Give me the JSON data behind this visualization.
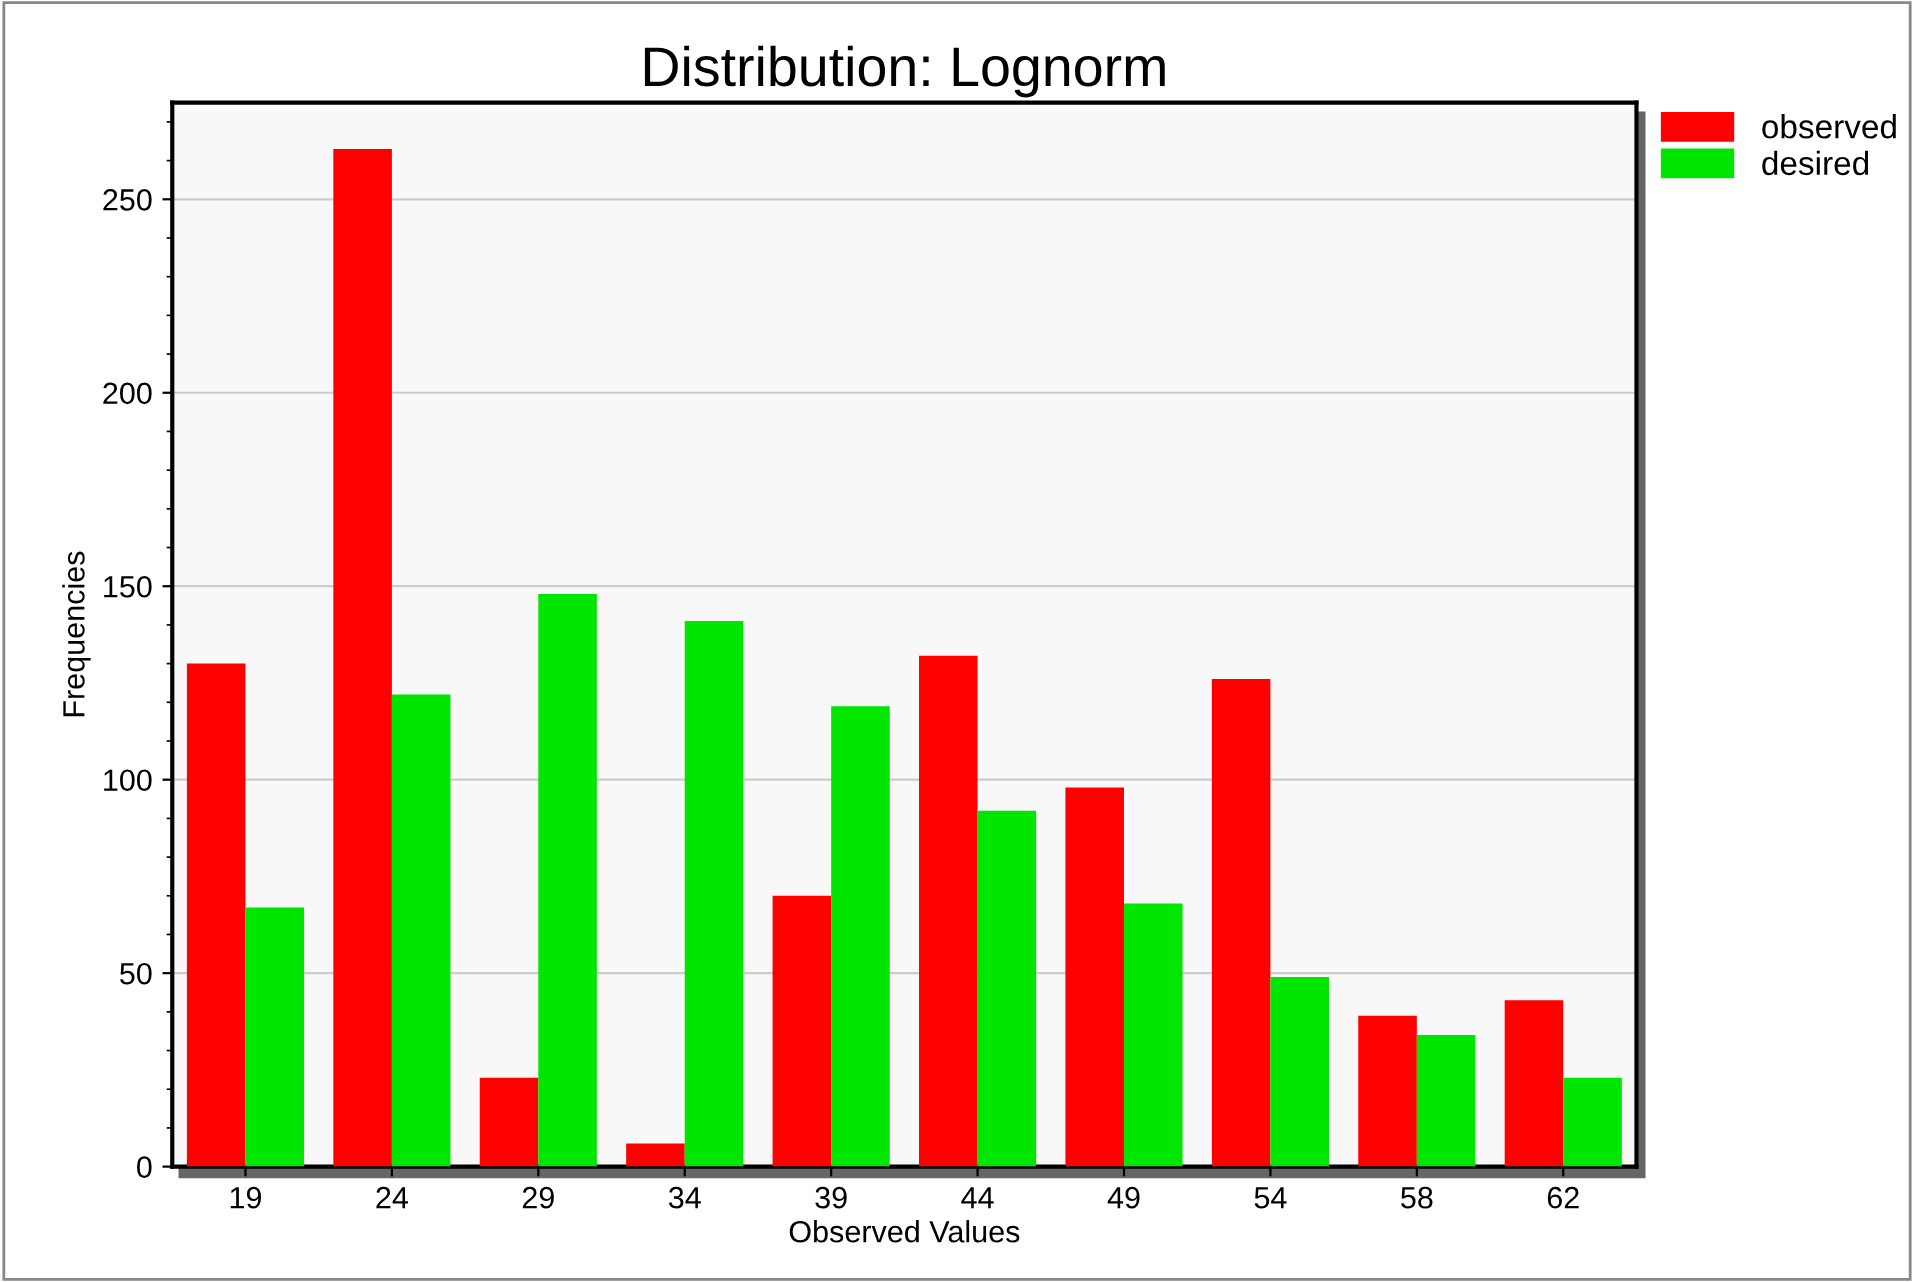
{
  "chart_data": {
    "type": "bar",
    "title": "Distribution: Lognorm",
    "xlabel": "Observed Values",
    "ylabel": "Frequencies",
    "categories": [
      "19",
      "24",
      "29",
      "34",
      "39",
      "44",
      "49",
      "54",
      "58",
      "62"
    ],
    "series": [
      {
        "name": "observed",
        "color": "#ff0000",
        "values": [
          130,
          263,
          23,
          6,
          70,
          132,
          98,
          126,
          39,
          43
        ]
      },
      {
        "name": "desired",
        "color": "#00e600",
        "values": [
          67,
          122,
          148,
          141,
          119,
          92,
          68,
          49,
          34,
          23
        ]
      }
    ],
    "ylim": [
      0,
      275
    ],
    "yticks": [
      0,
      50,
      100,
      150,
      200,
      250
    ],
    "grid": "y",
    "legend": "top right"
  }
}
